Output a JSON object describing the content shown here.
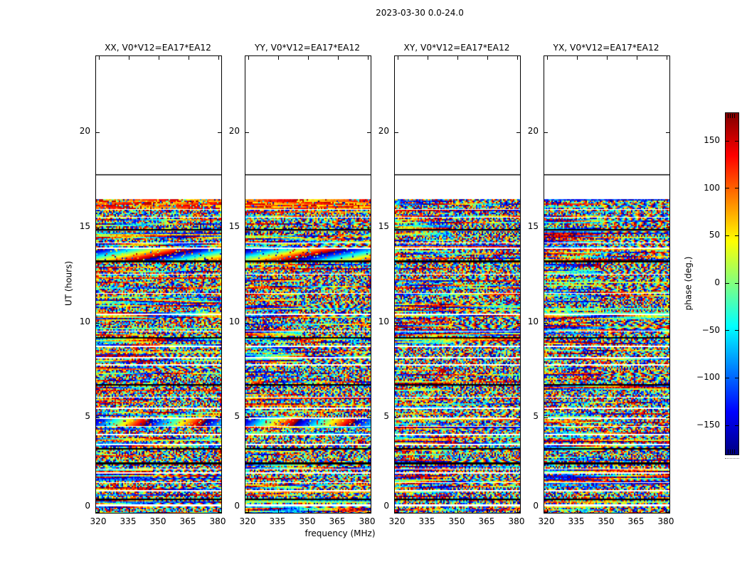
{
  "figure": {
    "title": "2023-03-30 0.0-24.0",
    "background": "#ffffff"
  },
  "chart_data": {
    "type": "heatmap",
    "title": "2023-03-30 0.0-24.0",
    "xlabel": "frequency (MHz)",
    "ylabel": "UT (hours)",
    "x_ticks": [
      320,
      335,
      350,
      365,
      380
    ],
    "y_ticks": [
      0,
      5,
      10,
      15,
      20
    ],
    "x_range": [
      318.5,
      381.5
    ],
    "y_range": [
      0,
      24
    ],
    "grid": false,
    "legend": "none",
    "panels": [
      {
        "title": "XX, V0*V12=EA17*EA12",
        "pol": "XX",
        "smooth_phase_features": true
      },
      {
        "title": "YY, V0*V12=EA17*EA12",
        "pol": "YY",
        "smooth_phase_features": true
      },
      {
        "title": "XY, V0*V12=EA17*EA12",
        "pol": "XY",
        "smooth_phase_features": false
      },
      {
        "title": "YX, V0*V12=EA17*EA12",
        "pol": "YX",
        "smooth_phase_features": false
      }
    ],
    "colorbar": {
      "label": "phase (deg.)",
      "ticks": [
        150,
        100,
        50,
        0,
        -50,
        -100,
        -150
      ],
      "range": [
        -180,
        180
      ],
      "colormap": "jet"
    },
    "values": "random-looking interferometric phase noise spanning -180..180 deg for UT 0 to ~16.5 h; blank (no data) above, with one black horizontal line at UT ~17.8 h",
    "no_data_above_ut": 16.48,
    "hline_ut": 17.8,
    "data_rows": [
      [
        0.0,
        0.35,
        "noise"
      ],
      [
        0.35,
        0.44,
        "gap"
      ],
      [
        0.44,
        0.66,
        "noise"
      ],
      [
        0.66,
        0.76,
        "black"
      ],
      [
        0.76,
        1.14,
        "noise"
      ],
      [
        1.14,
        1.22,
        "gap"
      ],
      [
        1.22,
        1.58,
        "noise"
      ],
      [
        1.58,
        1.66,
        "gap"
      ],
      [
        1.66,
        2.04,
        "noise"
      ],
      [
        2.04,
        2.12,
        "gap"
      ],
      [
        2.12,
        2.28,
        "noise"
      ],
      [
        2.28,
        2.36,
        "gap"
      ],
      [
        2.36,
        2.54,
        "noise"
      ],
      [
        2.54,
        2.68,
        "black"
      ],
      [
        2.68,
        3.32,
        "noise"
      ],
      [
        3.32,
        3.44,
        "black"
      ],
      [
        3.44,
        3.56,
        "noise"
      ],
      [
        3.56,
        3.64,
        "gap"
      ],
      [
        3.64,
        4.08,
        "noise"
      ],
      [
        4.08,
        4.16,
        "gap"
      ],
      [
        4.16,
        4.52,
        "noise"
      ],
      [
        4.52,
        4.56,
        "gap"
      ],
      [
        4.56,
        4.92,
        "sweep1"
      ],
      [
        4.92,
        5.04,
        "gap"
      ],
      [
        5.04,
        5.44,
        "noise"
      ],
      [
        5.44,
        5.52,
        "gap"
      ],
      [
        5.52,
        6.04,
        "noise"
      ],
      [
        6.04,
        6.12,
        "gap"
      ],
      [
        6.12,
        6.68,
        "noise"
      ],
      [
        6.68,
        6.8,
        "black"
      ],
      [
        6.8,
        7.72,
        "noise"
      ],
      [
        7.72,
        7.8,
        "gap"
      ],
      [
        7.8,
        8.12,
        "noise"
      ],
      [
        8.12,
        8.2,
        "gap"
      ],
      [
        8.2,
        8.72,
        "noise"
      ],
      [
        8.72,
        8.8,
        "gap"
      ],
      [
        8.8,
        9.16,
        "noise"
      ],
      [
        9.16,
        9.24,
        "black"
      ],
      [
        9.24,
        9.52,
        "noise"
      ],
      [
        9.52,
        9.6,
        "gap"
      ],
      [
        9.6,
        10.4,
        "noise"
      ],
      [
        10.4,
        10.5,
        "gap"
      ],
      [
        10.5,
        11.52,
        "noise"
      ],
      [
        11.52,
        11.6,
        "gap"
      ],
      [
        11.6,
        12.52,
        "noise"
      ],
      [
        12.52,
        12.6,
        "gap"
      ],
      [
        12.6,
        13.16,
        "noise"
      ],
      [
        13.16,
        13.28,
        "black"
      ],
      [
        13.28,
        13.88,
        "sweep2"
      ],
      [
        13.88,
        13.96,
        "gap"
      ],
      [
        13.96,
        14.16,
        "noise"
      ],
      [
        14.16,
        14.24,
        "gap"
      ],
      [
        14.24,
        14.82,
        "noise"
      ],
      [
        14.82,
        14.92,
        "black"
      ],
      [
        14.92,
        15.52,
        "noise"
      ],
      [
        15.52,
        15.6,
        "gap"
      ],
      [
        15.6,
        15.92,
        "noise"
      ],
      [
        15.92,
        15.98,
        "gap"
      ],
      [
        15.98,
        16.48,
        "warm"
      ]
    ]
  }
}
